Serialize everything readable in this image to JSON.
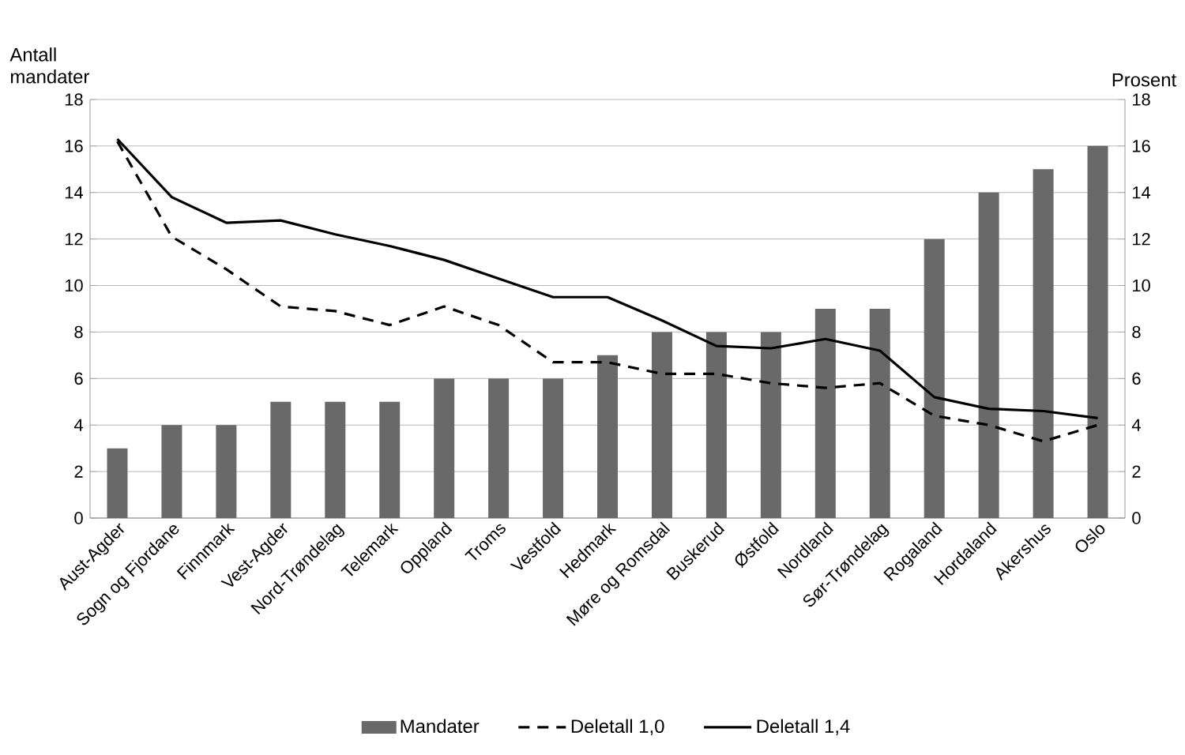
{
  "chart_data": {
    "type": "bar",
    "ylabel": "Antall mandater",
    "y2label": "Prosent",
    "categories": [
      "Aust-Agder",
      "Sogn og Fjordane",
      "Finnmark",
      "Vest-Agder",
      "Nord-Trøndelag",
      "Telemark",
      "Oppland",
      "Troms",
      "Vestfold",
      "Hedmark",
      "Møre og Romsdal",
      "Buskerud",
      "Østfold",
      "Nordland",
      "Sør-Trøndelag",
      "Rogaland",
      "Hordaland",
      "Akershus",
      "Oslo"
    ],
    "series": [
      {
        "name": "Mandater",
        "color": "#696969",
        "values": [
          3,
          4,
          4,
          5,
          5,
          5,
          6,
          6,
          6,
          7,
          8,
          8,
          8,
          9,
          9,
          12,
          14,
          15,
          16
        ]
      },
      {
        "name": "Deletall 1,0",
        "type": "line",
        "axis": "y2",
        "color": "#000000",
        "line_style": "dashed",
        "values": [
          16.2,
          12.1,
          10.7,
          9.1,
          8.9,
          8.3,
          9.1,
          8.3,
          6.7,
          6.7,
          6.2,
          6.2,
          5.8,
          5.6,
          5.8,
          4.4,
          4.0,
          3.3,
          4.0
        ]
      },
      {
        "name": "Deletall 1,4",
        "type": "line",
        "axis": "y2",
        "color": "#000000",
        "line_style": "solid",
        "values": [
          16.3,
          13.8,
          12.7,
          12.8,
          12.2,
          11.7,
          11.1,
          10.3,
          9.5,
          9.5,
          8.5,
          7.4,
          7.3,
          7.7,
          7.2,
          5.2,
          4.7,
          4.6,
          4.3
        ]
      }
    ],
    "ylim": [
      0,
      18
    ],
    "yticks": [
      0,
      2,
      4,
      6,
      8,
      10,
      12,
      14,
      16,
      18
    ],
    "y2lim": [
      0,
      18
    ],
    "y2ticks": [
      0,
      2,
      4,
      6,
      8,
      10,
      12,
      14,
      16,
      18
    ],
    "grid": "y",
    "legend": "bottom"
  }
}
